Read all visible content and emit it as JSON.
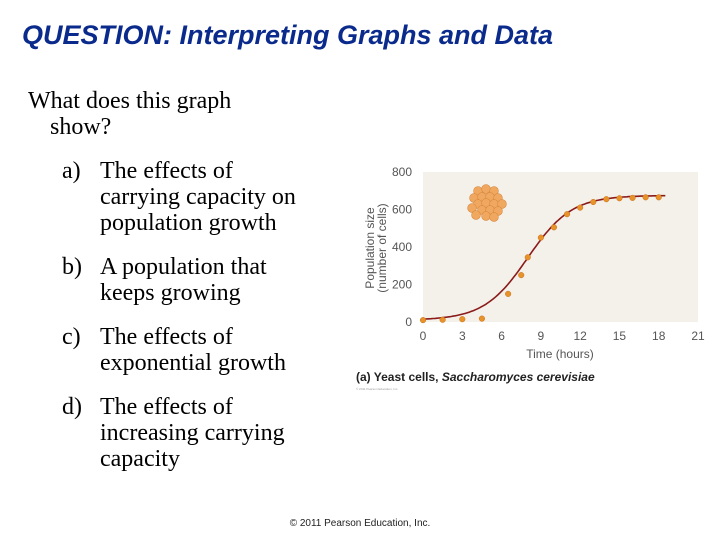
{
  "slide": {
    "title": "QUESTION: Interpreting Graphs and Data",
    "question_line1": "What does this graph",
    "question_line2": "show?",
    "options": [
      {
        "letter": "a)",
        "lines": [
          "The effects of",
          "carrying capacity on",
          "population growth"
        ]
      },
      {
        "letter": "b)",
        "lines": [
          "A population that",
          "keeps growing"
        ]
      },
      {
        "letter": "c)",
        "lines": [
          "The effects of",
          "exponential growth"
        ]
      },
      {
        "letter": "d)",
        "lines": [
          "The effects of",
          "increasing carrying",
          "capacity"
        ]
      }
    ],
    "footer": "© 2011 Pearson Education, Inc."
  },
  "chart_data": {
    "type": "line",
    "caption_prefix": "(a) Yeast cells, ",
    "caption_species": "Saccharomyces cerevisiae",
    "credit": "© 2011 Pearson Education, Inc.",
    "xlabel": "Time (hours)",
    "ylabel_line1": "Population size",
    "ylabel_line2": "(number of cells)",
    "xlim": [
      0,
      21
    ],
    "ylim": [
      0,
      800
    ],
    "xticks": [
      "0",
      "3",
      "6",
      "9",
      "12",
      "15",
      "18",
      "21"
    ],
    "yticks": [
      "0",
      "200",
      "400",
      "600",
      "800"
    ],
    "grid": false,
    "legend": "none",
    "point_color": "#e8922a",
    "curve_color": "#8b1a1a",
    "background_color": "#f3f1ea",
    "points": [
      {
        "x": 0,
        "y": 10
      },
      {
        "x": 1.5,
        "y": 12
      },
      {
        "x": 3,
        "y": 15
      },
      {
        "x": 4.5,
        "y": 18
      },
      {
        "x": 6.5,
        "y": 150
      },
      {
        "x": 7.5,
        "y": 250
      },
      {
        "x": 8,
        "y": 345
      },
      {
        "x": 9,
        "y": 450
      },
      {
        "x": 10,
        "y": 505
      },
      {
        "x": 11,
        "y": 575
      },
      {
        "x": 12,
        "y": 610
      },
      {
        "x": 13,
        "y": 640
      },
      {
        "x": 14,
        "y": 655
      },
      {
        "x": 15,
        "y": 660
      },
      {
        "x": 16,
        "y": 662
      },
      {
        "x": 17,
        "y": 665
      },
      {
        "x": 18,
        "y": 665
      }
    ],
    "curve": {
      "K": 665,
      "r": 0.6,
      "t_mid": 8.0
    }
  }
}
